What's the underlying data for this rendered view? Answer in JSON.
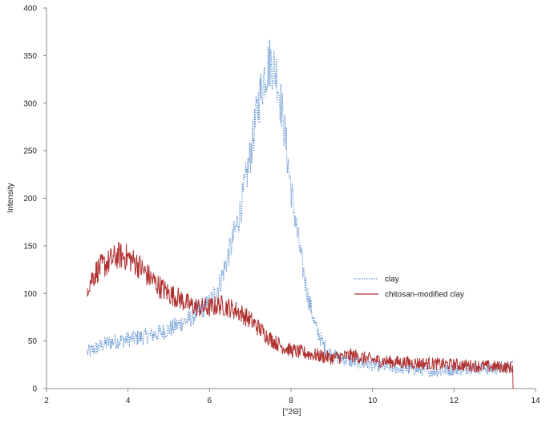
{
  "chart_data": {
    "type": "line",
    "title": "",
    "xlabel": "[°2Θ]",
    "ylabel": "Intensity",
    "xlim": [
      2,
      14
    ],
    "ylim": [
      0,
      400
    ],
    "xticks": [
      2,
      4,
      6,
      8,
      10,
      12,
      14
    ],
    "yticks": [
      0,
      50,
      100,
      150,
      200,
      250,
      300,
      350,
      400
    ],
    "grid": false,
    "legend_position": "right",
    "series": [
      {
        "name": "clay",
        "color": "#5b8fd0",
        "style": "dotted",
        "x": [
          3.0,
          3.5,
          4.0,
          4.5,
          5.0,
          5.5,
          6.0,
          6.25,
          6.5,
          6.75,
          7.0,
          7.2,
          7.35,
          7.5,
          7.65,
          7.8,
          8.0,
          8.2,
          8.4,
          8.6,
          8.8,
          9.0,
          9.5,
          10.0,
          10.5,
          11.0,
          11.5,
          12.0,
          12.5,
          13.0,
          13.45
        ],
        "y": [
          38,
          48,
          52,
          55,
          62,
          73,
          90,
          110,
          145,
          185,
          245,
          300,
          330,
          345,
          330,
          285,
          210,
          150,
          100,
          65,
          45,
          35,
          28,
          25,
          22,
          20,
          18,
          20,
          22,
          20,
          25
        ]
      },
      {
        "name": "chitosan-modified clay",
        "color": "#b03030",
        "style": "solid",
        "x": [
          3.0,
          3.25,
          3.5,
          3.75,
          4.0,
          4.25,
          4.5,
          4.75,
          5.0,
          5.25,
          5.5,
          5.75,
          6.0,
          6.25,
          6.5,
          6.75,
          7.0,
          7.25,
          7.5,
          7.75,
          8.0,
          8.5,
          9.0,
          9.5,
          10.0,
          10.5,
          11.0,
          11.5,
          12.0,
          12.5,
          13.0,
          13.45
        ],
        "y": [
          108,
          125,
          132,
          140,
          138,
          130,
          118,
          108,
          100,
          95,
          88,
          85,
          85,
          88,
          85,
          80,
          72,
          62,
          52,
          45,
          40,
          36,
          32,
          35,
          30,
          28,
          27,
          26,
          25,
          24,
          23,
          22
        ]
      }
    ]
  }
}
